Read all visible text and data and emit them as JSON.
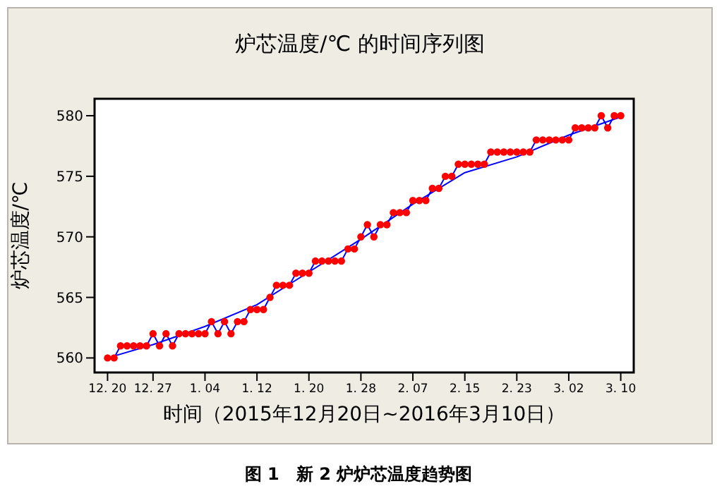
{
  "chart_data": {
    "type": "line",
    "title": "炉芯温度/℃ 的时间序列图",
    "xlabel": "时间（2015年12月20日~2016年3月10日）",
    "ylabel": "炉芯温度/℃",
    "annotations": [
      "图 1　新 2 炉炉芯温度趋势图"
    ],
    "categories": [
      "12. 20",
      null,
      null,
      null,
      null,
      null,
      null,
      "12. 27",
      null,
      null,
      null,
      null,
      null,
      null,
      null,
      "1. 04",
      null,
      null,
      null,
      null,
      null,
      null,
      null,
      "1. 12",
      null,
      null,
      null,
      null,
      null,
      null,
      null,
      "1. 20",
      null,
      null,
      null,
      null,
      null,
      null,
      null,
      "1. 28",
      null,
      null,
      null,
      null,
      null,
      null,
      null,
      "2. 07",
      null,
      null,
      null,
      null,
      null,
      null,
      null,
      "2. 15",
      null,
      null,
      null,
      null,
      null,
      null,
      null,
      "2. 23",
      null,
      null,
      null,
      null,
      null,
      null,
      null,
      "3. 02",
      null,
      null,
      null,
      null,
      null,
      null,
      null,
      "3. 10"
    ],
    "series": [
      {
        "color": "#0000ff",
        "colors": [
          "#ff0000",
          "#ff0000",
          "#ff0000",
          "#ff0000",
          "#ff0000",
          "#ff0000",
          "#ff0000",
          "#ff0000",
          "#ff0000",
          "#ff0000",
          "#ff0000",
          "#ff0000",
          "#ff0000",
          "#ff0000",
          "#ff0000",
          "#ff0000",
          "#ff0000",
          "#ff0000",
          "#ff0000",
          "#ff0000",
          "#ff0000",
          "#ff0000",
          "#ff0000",
          "#ff0000",
          "#ff0000",
          "#ff0000",
          "#ff0000",
          "#ff0000",
          "#ff0000",
          "#ff0000",
          "#ff0000",
          "#ff0000",
          "#ff0000",
          "#ff0000",
          "#ff0000",
          "#ff0000",
          "#ff0000",
          "#ff0000",
          "#ff0000",
          "#ff0000",
          "#ff0000",
          "#ff0000",
          "#ff0000",
          "#ff0000",
          "#ff0000",
          "#ff0000",
          "#ff0000",
          "#ff0000",
          "#ff0000",
          "#ff0000",
          "#ff0000",
          "#ff0000",
          "#ff0000",
          "#ff0000",
          "#ff0000",
          "#ff0000",
          "#ff0000",
          "#ff0000",
          "#ff0000",
          "#ff0000",
          "#ff0000",
          "#ff0000",
          "#ff0000",
          "#ff0000",
          "#ff0000",
          "#ff0000",
          "#ff0000",
          "#ff0000",
          "#ff0000",
          "#ff0000",
          "#ff0000",
          "#ff0000",
          "#ff0000",
          "#ff0000",
          "#ff0000",
          "#ff0000",
          "#ff0000",
          "#ff0000",
          "#ff0000",
          "#ff0000"
        ],
        "values": [
          560,
          560,
          561,
          561,
          561,
          561,
          561,
          562,
          561,
          562,
          561,
          562,
          562,
          562,
          562,
          562,
          563,
          562,
          563,
          562,
          563,
          563,
          564,
          564,
          564,
          565,
          566,
          566,
          566,
          567,
          567,
          567,
          568,
          568,
          568,
          568,
          568,
          569,
          569,
          570,
          571,
          570,
          571,
          571,
          572,
          572,
          572,
          573,
          573,
          573,
          574,
          574,
          575,
          575,
          576,
          576,
          576,
          576,
          576,
          577,
          577,
          577,
          577,
          577,
          577,
          577,
          578,
          578,
          578,
          578,
          578,
          578,
          579,
          579,
          579,
          579,
          580,
          579,
          580,
          580
        ]
      },
      {
        "type": "line",
        "color": "#0000ff",
        "marker": "none",
        "x": [
          "12. 20",
          "12. 27",
          "1. 04",
          "1. 12",
          "1. 20",
          "1. 28",
          "2. 07",
          "2. 15",
          "2. 23",
          "3. 02",
          "3. 10"
        ],
        "values": [
          560.0,
          561.1,
          562.6,
          564.4,
          567.1,
          569.8,
          572.7,
          575.3,
          576.6,
          578.4,
          579.9
        ]
      }
    ],
    "ylim": [
      558.8,
      581.4
    ],
    "yticks": [
      560,
      565,
      570,
      575,
      580
    ],
    "marker": "circle",
    "line_style": "solid"
  }
}
